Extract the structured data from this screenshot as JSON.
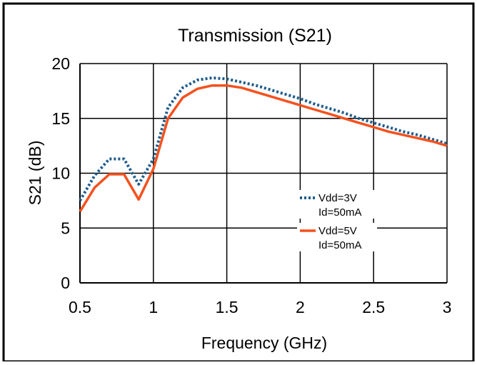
{
  "chart_data": {
    "type": "line",
    "title": "Transmission (S21)",
    "xlabel": "Frequency (GHz)",
    "ylabel": "S21 (dB)",
    "xlim": [
      0.5,
      3
    ],
    "ylim": [
      0,
      20
    ],
    "x_ticks": [
      "0.5",
      "1",
      "1.5",
      "2",
      "2.5",
      "3"
    ],
    "y_ticks": [
      "0",
      "5",
      "10",
      "15",
      "20"
    ],
    "grid": true,
    "legend_position": "right",
    "series": [
      {
        "name": "Vdd=3V Id=50mA",
        "legend_lines": [
          "Vdd=3V",
          "Id=50mA"
        ],
        "color": "#1f5c8c",
        "style": "dotted",
        "points": [
          [
            0.5,
            7.5
          ],
          [
            0.6,
            9.8
          ],
          [
            0.7,
            11.3
          ],
          [
            0.8,
            11.3
          ],
          [
            0.9,
            9.0
          ],
          [
            1.0,
            11.3
          ],
          [
            1.1,
            16.0
          ],
          [
            1.2,
            17.8
          ],
          [
            1.3,
            18.5
          ],
          [
            1.4,
            18.7
          ],
          [
            1.5,
            18.6
          ],
          [
            1.6,
            18.3
          ],
          [
            1.7,
            18.0
          ],
          [
            1.8,
            17.6
          ],
          [
            1.9,
            17.2
          ],
          [
            2.0,
            16.8
          ],
          [
            2.1,
            16.3
          ],
          [
            2.2,
            15.9
          ],
          [
            2.3,
            15.5
          ],
          [
            2.4,
            15.0
          ],
          [
            2.5,
            14.6
          ],
          [
            2.6,
            14.2
          ],
          [
            2.7,
            13.8
          ],
          [
            2.8,
            13.5
          ],
          [
            2.9,
            13.1
          ],
          [
            3.0,
            12.7
          ]
        ]
      },
      {
        "name": "Vdd=5V Id=50mA",
        "legend_lines": [
          "Vdd=5V",
          "Id=50mA"
        ],
        "color": "#f4511e",
        "style": "solid",
        "points": [
          [
            0.5,
            6.5
          ],
          [
            0.6,
            8.7
          ],
          [
            0.7,
            9.9
          ],
          [
            0.8,
            9.9
          ],
          [
            0.9,
            7.6
          ],
          [
            1.0,
            10.4
          ],
          [
            1.1,
            15.0
          ],
          [
            1.2,
            16.9
          ],
          [
            1.3,
            17.7
          ],
          [
            1.4,
            18.0
          ],
          [
            1.5,
            18.0
          ],
          [
            1.6,
            17.8
          ],
          [
            1.7,
            17.4
          ],
          [
            1.8,
            17.0
          ],
          [
            1.9,
            16.6
          ],
          [
            2.0,
            16.2
          ],
          [
            2.1,
            15.8
          ],
          [
            2.2,
            15.4
          ],
          [
            2.3,
            15.0
          ],
          [
            2.4,
            14.6
          ],
          [
            2.5,
            14.2
          ],
          [
            2.6,
            13.8
          ],
          [
            2.7,
            13.5
          ],
          [
            2.8,
            13.2
          ],
          [
            2.9,
            12.9
          ],
          [
            3.0,
            12.5
          ]
        ]
      }
    ]
  }
}
